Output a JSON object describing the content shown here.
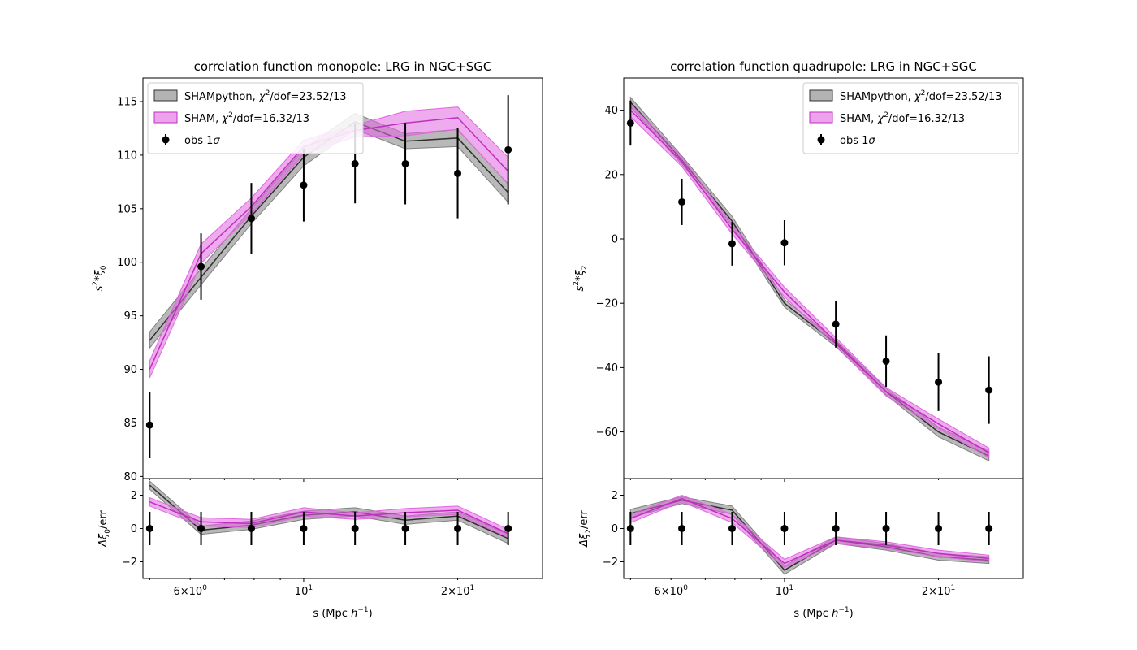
{
  "figure": {
    "background": "#ffffff"
  },
  "colors": {
    "shampython_band": "#808080",
    "shampython_line": "#303030",
    "sham_band": "#e066e0",
    "sham_line": "#bf2fbf",
    "obs": "#000000"
  },
  "chart_data": [
    {
      "type": "line",
      "title": "correlation function monopole: LRG in NGC+SGC",
      "xlabel": "s (Mpc h⁻¹)",
      "xlabel_parts": {
        "main": "s (Mpc ",
        "sym": "h",
        "exp": "−1",
        "close": ")"
      },
      "ylabel": "s²*ξ₀",
      "ylabel_parts": {
        "base": "s",
        "exp": "2",
        "mid": "*",
        "sym": "ξ",
        "sub": "0"
      },
      "xscale": "log",
      "xlim": [
        4.85,
        29.3
      ],
      "ylim": [
        79.8,
        117.2
      ],
      "yticks": [
        80,
        85,
        90,
        95,
        100,
        105,
        110,
        115
      ],
      "ytick_labels": [
        "80",
        "85",
        "90",
        "95",
        "100",
        "105",
        "110",
        "115"
      ],
      "x": [
        5.0,
        6.3,
        7.9,
        10.0,
        12.6,
        15.8,
        20.0,
        25.1
      ],
      "series": [
        {
          "name": "SHAMpython, χ²/dof=23.52/13",
          "legend_parts": {
            "prefix": "SHAMpython, ",
            "sym": "χ",
            "exp": "2",
            "suffix": "/dof=23.52/13"
          },
          "kind": "band",
          "center": [
            92.7,
            98.6,
            104.3,
            109.8,
            113.1,
            111.3,
            111.6,
            106.5
          ],
          "lower": [
            92.0,
            97.9,
            103.6,
            109.0,
            112.4,
            110.6,
            110.8,
            105.6
          ],
          "upper": [
            93.5,
            99.4,
            105.0,
            110.6,
            113.9,
            112.0,
            112.4,
            107.3
          ]
        },
        {
          "name": "SHAM, χ²/dof=16.32/13",
          "legend_parts": {
            "prefix": "SHAM, ",
            "sym": "χ",
            "exp": "2",
            "suffix": "/dof=16.32/13"
          },
          "kind": "band",
          "center": [
            90.0,
            100.8,
            105.2,
            110.8,
            112.3,
            113.0,
            113.5,
            108.5
          ],
          "lower": [
            89.2,
            99.9,
            104.5,
            110.1,
            111.7,
            111.8,
            112.4,
            107.3
          ],
          "upper": [
            90.8,
            101.7,
            106.0,
            111.4,
            112.8,
            114.1,
            114.5,
            109.8
          ]
        },
        {
          "name": "obs 1σ",
          "legend_parts": {
            "prefix": "obs 1",
            "sym": "σ"
          },
          "kind": "errorbar",
          "y": [
            84.8,
            99.6,
            104.1,
            107.2,
            109.2,
            109.2,
            108.3,
            110.5
          ],
          "yerr": [
            3.1,
            3.1,
            3.3,
            3.4,
            3.7,
            3.8,
            4.2,
            5.1
          ]
        }
      ],
      "legend_loc": "upper-left",
      "residual": {
        "ylabel": "Δξ₀/err",
        "ylabel_parts": {
          "sym": "Δξ",
          "sub": "0",
          "suffix": "/err"
        },
        "ylim": [
          -3.0,
          3.0
        ],
        "yticks": [
          -2,
          0,
          2
        ],
        "ytick_labels": [
          "−2",
          "0",
          "2"
        ],
        "xtick_major_labels": [
          {
            "x": 6,
            "mant": "6×10",
            "exp": "0"
          },
          {
            "x": 10,
            "mant": "10",
            "exp": "1"
          },
          {
            "x": 20,
            "mant": "2×10",
            "exp": "1"
          }
        ],
        "series": [
          {
            "kind": "band",
            "ref": "SHAMpython",
            "center": [
              2.6,
              -0.1,
              0.2,
              0.8,
              1.0,
              0.5,
              0.75,
              -0.6
            ],
            "lower": [
              2.35,
              -0.35,
              -0.05,
              0.55,
              0.75,
              0.25,
              0.5,
              -0.9
            ],
            "upper": [
              2.85,
              0.15,
              0.45,
              1.05,
              1.25,
              0.75,
              1.0,
              -0.35
            ]
          },
          {
            "kind": "band",
            "ref": "SHAM",
            "center": [
              1.6,
              0.4,
              0.3,
              1.0,
              0.75,
              0.95,
              1.1,
              -0.3
            ],
            "lower": [
              1.35,
              0.15,
              0.05,
              0.75,
              0.55,
              0.7,
              0.85,
              -0.55
            ],
            "upper": [
              1.85,
              0.65,
              0.55,
              1.25,
              0.95,
              1.2,
              1.35,
              -0.05
            ]
          },
          {
            "kind": "errorbar",
            "y": [
              0,
              0,
              0,
              0,
              0,
              0,
              0,
              0
            ],
            "yerr": [
              1,
              1,
              1,
              1,
              1,
              1,
              1,
              1
            ]
          }
        ]
      }
    },
    {
      "type": "line",
      "title": "correlation function quadrupole: LRG in NGC+SGC",
      "xlabel": "s (Mpc h⁻¹)",
      "xlabel_parts": {
        "main": "s (Mpc ",
        "sym": "h",
        "exp": "−1",
        "close": ")"
      },
      "ylabel": "s²*ξ₂",
      "ylabel_parts": {
        "base": "s",
        "exp": "2",
        "mid": "*",
        "sym": "ξ",
        "sub": "2"
      },
      "xscale": "log",
      "xlim": [
        4.85,
        29.3
      ],
      "ylim": [
        -74.5,
        50.0
      ],
      "yticks": [
        -60,
        -40,
        -20,
        0,
        20,
        40
      ],
      "ytick_labels": [
        "−60",
        "−40",
        "−20",
        "0",
        "20",
        "40"
      ],
      "x": [
        5.0,
        6.3,
        7.9,
        10.0,
        12.6,
        15.8,
        20.0,
        25.1
      ],
      "series": [
        {
          "name": "SHAMpython, χ²/dof=23.52/13",
          "legend_parts": {
            "prefix": "SHAMpython, ",
            "sym": "χ",
            "exp": "2",
            "suffix": "/dof=23.52/13"
          },
          "kind": "band",
          "center": [
            42.5,
            24.5,
            5.5,
            -20.0,
            -32.5,
            -47.5,
            -60.0,
            -67.5
          ],
          "lower": [
            41.0,
            23.2,
            4.0,
            -21.2,
            -33.5,
            -48.5,
            -61.5,
            -69.0
          ],
          "upper": [
            44.0,
            25.8,
            7.0,
            -18.8,
            -31.5,
            -46.5,
            -58.5,
            -66.0
          ]
        },
        {
          "name": "SHAM, χ²/dof=16.32/13",
          "legend_parts": {
            "prefix": "SHAM, ",
            "sym": "χ",
            "exp": "2",
            "suffix": "/dof=16.32/13"
          },
          "kind": "band",
          "center": [
            40.0,
            24.0,
            3.0,
            -16.5,
            -32.0,
            -47.5,
            -57.5,
            -66.5
          ],
          "lower": [
            38.0,
            22.5,
            1.5,
            -18.0,
            -33.3,
            -48.8,
            -59.0,
            -68.0
          ],
          "upper": [
            42.0,
            25.5,
            4.5,
            -15.0,
            -30.7,
            -46.2,
            -56.0,
            -65.0
          ]
        },
        {
          "name": "obs 1σ",
          "legend_parts": {
            "prefix": "obs 1",
            "sym": "σ"
          },
          "kind": "errorbar",
          "y": [
            36.0,
            11.5,
            -1.5,
            -1.2,
            -26.5,
            -38.0,
            -44.5,
            -47.0
          ],
          "yerr": [
            7.0,
            7.2,
            6.8,
            7.0,
            7.3,
            8.0,
            9.0,
            10.5
          ]
        }
      ],
      "legend_loc": "upper-right",
      "residual": {
        "ylabel": "Δξ₂/err",
        "ylabel_parts": {
          "sym": "Δξ",
          "sub": "2",
          "suffix": "/err"
        },
        "ylim": [
          -3.0,
          3.0
        ],
        "yticks": [
          -2,
          0,
          2
        ],
        "ytick_labels": [
          "−2",
          "0",
          "2"
        ],
        "xtick_major_labels": [
          {
            "x": 6,
            "mant": "6×10",
            "exp": "0"
          },
          {
            "x": 10,
            "mant": "10",
            "exp": "1"
          },
          {
            "x": 20,
            "mant": "2×10",
            "exp": "1"
          }
        ],
        "series": [
          {
            "kind": "band",
            "ref": "SHAMpython",
            "center": [
              0.9,
              1.7,
              1.1,
              -2.5,
              -0.7,
              -1.1,
              -1.7,
              -1.9
            ],
            "lower": [
              0.65,
              1.5,
              0.85,
              -2.75,
              -0.9,
              -1.3,
              -1.9,
              -2.1
            ],
            "upper": [
              1.15,
              1.9,
              1.35,
              -2.25,
              -0.5,
              -0.9,
              -1.5,
              -1.7
            ]
          },
          {
            "kind": "band",
            "ref": "SHAM",
            "center": [
              0.6,
              1.8,
              0.6,
              -2.1,
              -0.7,
              -1.0,
              -1.5,
              -1.8
            ],
            "lower": [
              0.35,
              1.6,
              0.35,
              -2.35,
              -0.9,
              -1.2,
              -1.7,
              -2.0
            ],
            "upper": [
              0.85,
              2.0,
              0.85,
              -1.85,
              -0.5,
              -0.8,
              -1.3,
              -1.6
            ]
          },
          {
            "kind": "errorbar",
            "y": [
              0,
              0,
              0,
              0,
              0,
              0,
              0,
              0
            ],
            "yerr": [
              1,
              1,
              1,
              1,
              1,
              1,
              1,
              1
            ]
          }
        ]
      }
    }
  ]
}
